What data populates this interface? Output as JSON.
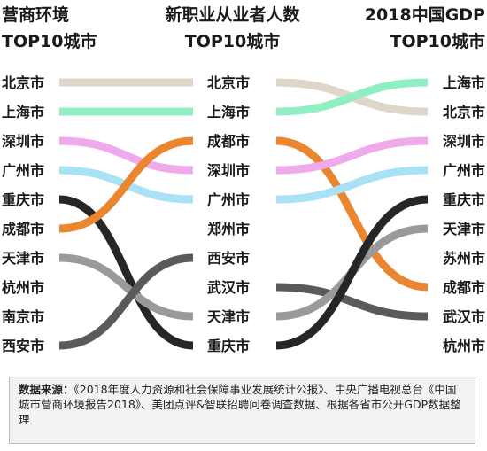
{
  "headers": {
    "col1": [
      "营商环境",
      "TOP10城市"
    ],
    "col2": [
      "新职业从业者人数",
      "TOP10城市"
    ],
    "col3": [
      "2018中国GDP",
      "TOP10城市"
    ]
  },
  "source": {
    "label": "数据来源：",
    "text": "《2018年度人力资源和社会保障事业发展统计公报》、中央广播电视总台《中国城市营商环境报告2018》、美团点评&智联招聘问卷调查数据、根据各省市公开GDP数据整理"
  },
  "chart_data": {
    "type": "bump",
    "rankings": [
      {
        "title": "营商环境 TOP10城市",
        "cities": [
          "北京市",
          "上海市",
          "深圳市",
          "广州市",
          "重庆市",
          "成都市",
          "天津市",
          "杭州市",
          "南京市",
          "西安市"
        ]
      },
      {
        "title": "新职业从业者人数 TOP10城市",
        "cities": [
          "北京市",
          "上海市",
          "成都市",
          "深圳市",
          "广州市",
          "郑州市",
          "西安市",
          "武汉市",
          "天津市",
          "重庆市"
        ]
      },
      {
        "title": "2018中国GDP TOP10城市",
        "cities": [
          "上海市",
          "北京市",
          "深圳市",
          "广州市",
          "重庆市",
          "天津市",
          "苏州市",
          "成都市",
          "武汉市",
          "杭州市"
        ]
      }
    ],
    "colors": {
      "北京市": "#ddd6c9",
      "上海市": "#8fefc2",
      "深圳市": "#eeaaea",
      "广州市": "#a9e1f7",
      "重庆市": "#262626",
      "成都市": "#ea8530",
      "天津市": "#9a9a9a",
      "西安市": "#5a5a5a",
      "武汉市": "#5a5a5a"
    }
  }
}
